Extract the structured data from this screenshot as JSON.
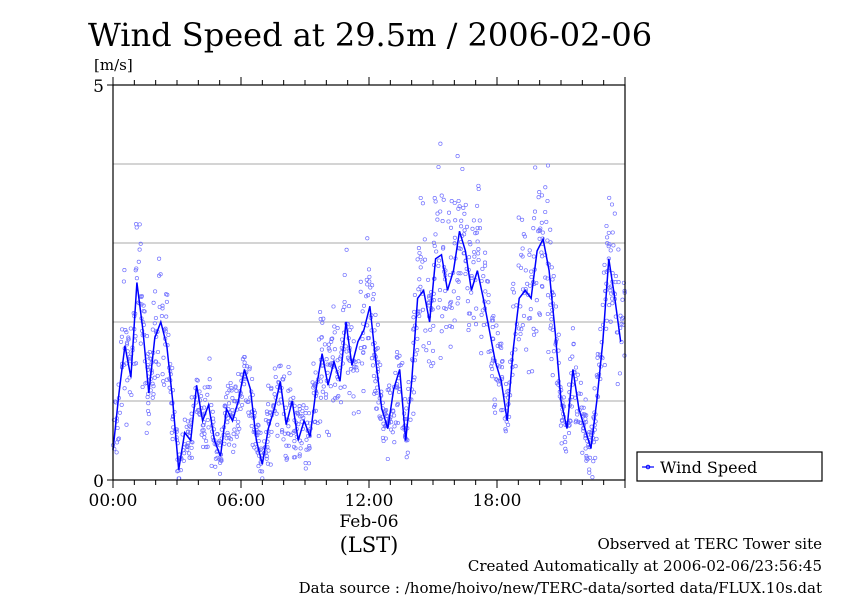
{
  "chart_data": {
    "type": "scatter",
    "title": "Wind Speed at 29.5m / 2006-02-06",
    "ylabel": "[m/s]",
    "xlabel": "(LST)",
    "date_label": "Feb-06",
    "ylim": [
      0,
      5
    ],
    "xlim_hours": [
      0,
      24
    ],
    "y_ticks": [
      "0",
      "5"
    ],
    "y_gridlines": [
      1,
      2,
      3,
      4
    ],
    "x_ticks": [
      {
        "hour": 0,
        "label": "00:00"
      },
      {
        "hour": 6,
        "label": "06:00"
      },
      {
        "hour": 12,
        "label": "12:00"
      },
      {
        "hour": 18,
        "label": "18:00"
      }
    ],
    "legend": {
      "label": "Wind Speed",
      "placement": "right-bottom"
    },
    "series_color": "#0000ff",
    "scatter_color": "#7070ff",
    "mean_line": {
      "x_step_hours": 0.28,
      "values": [
        0.38,
        1.1,
        1.7,
        1.3,
        2.5,
        1.9,
        1.1,
        1.8,
        2.0,
        1.7,
        1.0,
        0.13,
        0.6,
        0.5,
        1.2,
        0.75,
        0.95,
        0.5,
        0.3,
        0.9,
        0.75,
        1.0,
        1.4,
        1.15,
        0.5,
        0.2,
        0.65,
        0.9,
        1.25,
        0.7,
        1.0,
        0.5,
        0.75,
        0.55,
        1.15,
        1.6,
        1.2,
        1.5,
        1.25,
        2.0,
        1.45,
        1.75,
        1.9,
        2.2,
        1.5,
        0.9,
        0.65,
        1.15,
        1.4,
        0.5,
        1.25,
        2.3,
        2.4,
        2.0,
        2.8,
        2.85,
        2.4,
        2.65,
        3.15,
        2.9,
        2.4,
        2.65,
        2.3,
        1.9,
        1.5,
        1.25,
        0.75,
        1.65,
        2.3,
        2.4,
        2.3,
        2.9,
        3.05,
        2.65,
        1.9,
        1.0,
        0.65,
        1.4,
        0.9,
        0.65,
        0.4,
        1.0,
        1.75,
        2.8,
        2.3,
        1.75,
        2.15,
        1.9,
        2.55,
        2.3
      ]
    }
  },
  "footer": {
    "site": "Observed at TERC Tower site",
    "created": "Created Automatically at 2006-02-06/23:56:45",
    "source": "Data source : /home/hoivo/new/TERC-data/sorted  data/FLUX.10s.dat"
  }
}
